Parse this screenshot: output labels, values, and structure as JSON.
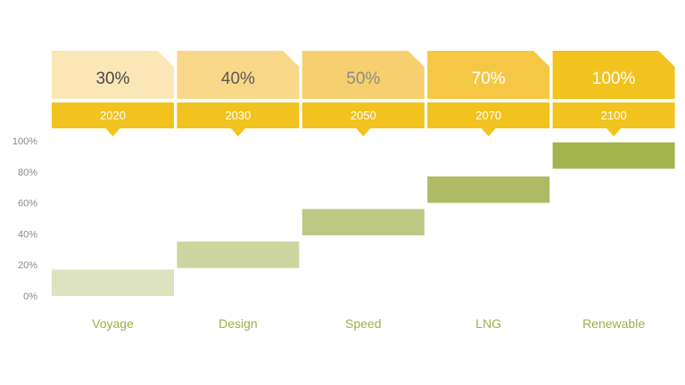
{
  "chart_data": {
    "type": "bar",
    "categories": [
      "Voyage",
      "Design",
      "Speed",
      "LNG",
      "Renewable"
    ],
    "years": [
      "2020",
      "2030",
      "2050",
      "2070",
      "2100"
    ],
    "percent_labels": [
      "30%",
      "40%",
      "50%",
      "70%",
      "100%"
    ],
    "ranges": [
      [
        0,
        17
      ],
      [
        18,
        35
      ],
      [
        39,
        56
      ],
      [
        60,
        77
      ],
      [
        82,
        99
      ]
    ],
    "ylim": [
      0,
      100
    ],
    "yticks": [
      0,
      20,
      40,
      60,
      80,
      100
    ],
    "ytick_labels": [
      "0%",
      "20%",
      "40%",
      "60%",
      "80%",
      "100%"
    ],
    "header_colors": [
      "#fbe6b7",
      "#f8d888",
      "#f6d06e",
      "#f5c745",
      "#f2c21e"
    ],
    "header_text_colors": [
      "#4a4a4a",
      "#5a5a5a",
      "#8c8c8c",
      "#ffffff",
      "#ffffff"
    ],
    "year_band_color": "#f2c21e",
    "bar_colors": [
      "#dde3bf",
      "#cdd6a0",
      "#bec885",
      "#aeba64",
      "#a3b44f"
    ],
    "category_label_color": "#9bb04a"
  }
}
